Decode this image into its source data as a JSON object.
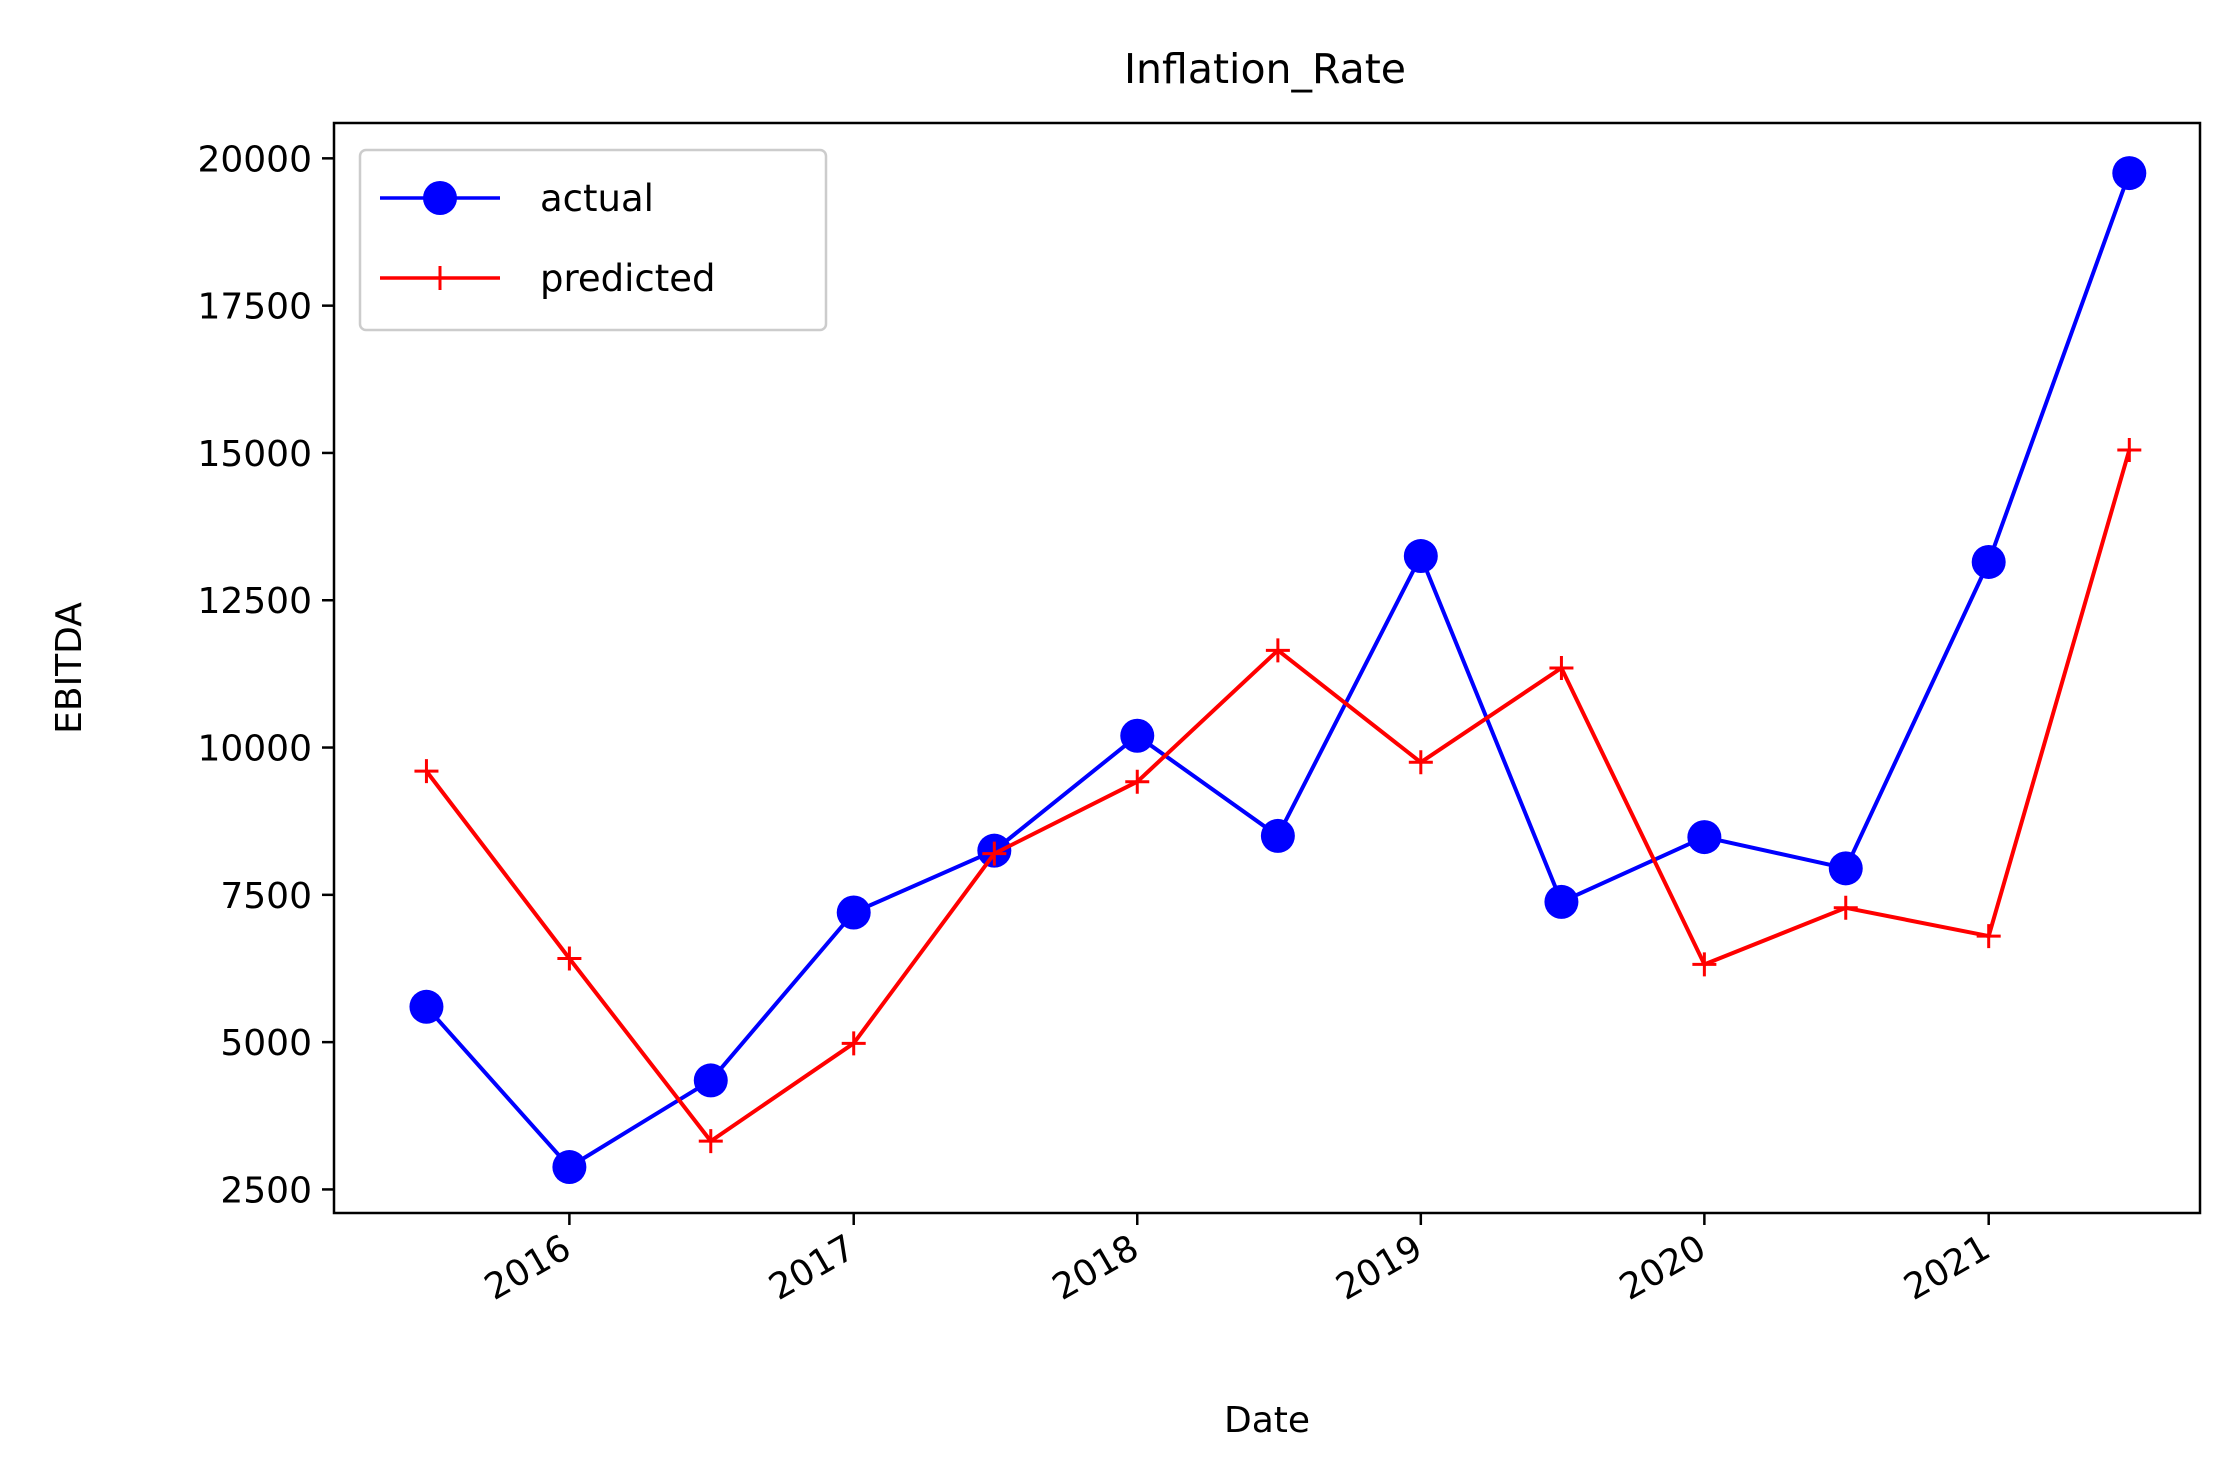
{
  "chart_data": {
    "type": "line",
    "title": "Inflation_Rate",
    "xlabel": "Date",
    "ylabel": "EBITDA",
    "x_tick_labels": [
      "2016",
      "2017",
      "2018",
      "2019",
      "2020",
      "2021"
    ],
    "y_tick_labels": [
      "2500",
      "5000",
      "7500",
      "10000",
      "12500",
      "15000",
      "17500",
      "20000"
    ],
    "ylim": [
      2100,
      20600
    ],
    "xlim": [
      "2015-03-04",
      "2021-09-30"
    ],
    "grid": false,
    "legend_position": "upper-left",
    "x": [
      "2015-07-01",
      "2016-01-01",
      "2016-07-01",
      "2017-01-01",
      "2017-07-01",
      "2018-01-01",
      "2018-07-01",
      "2019-01-01",
      "2019-07-01",
      "2020-01-01",
      "2020-07-01",
      "2021-01-01",
      "2021-07-01"
    ],
    "series": [
      {
        "name": "actual",
        "color": "#0000ff",
        "marker": "circle",
        "values": [
          5600,
          2880,
          4350,
          7200,
          8250,
          10200,
          8500,
          13250,
          7380,
          8480,
          7950,
          13150,
          19750
        ]
      },
      {
        "name": "predicted",
        "color": "#ff0000",
        "marker": "plus",
        "values": [
          9600,
          6420,
          3320,
          4980,
          8200,
          9420,
          11650,
          9750,
          11350,
          6320,
          7280,
          6800,
          15050
        ]
      }
    ]
  }
}
